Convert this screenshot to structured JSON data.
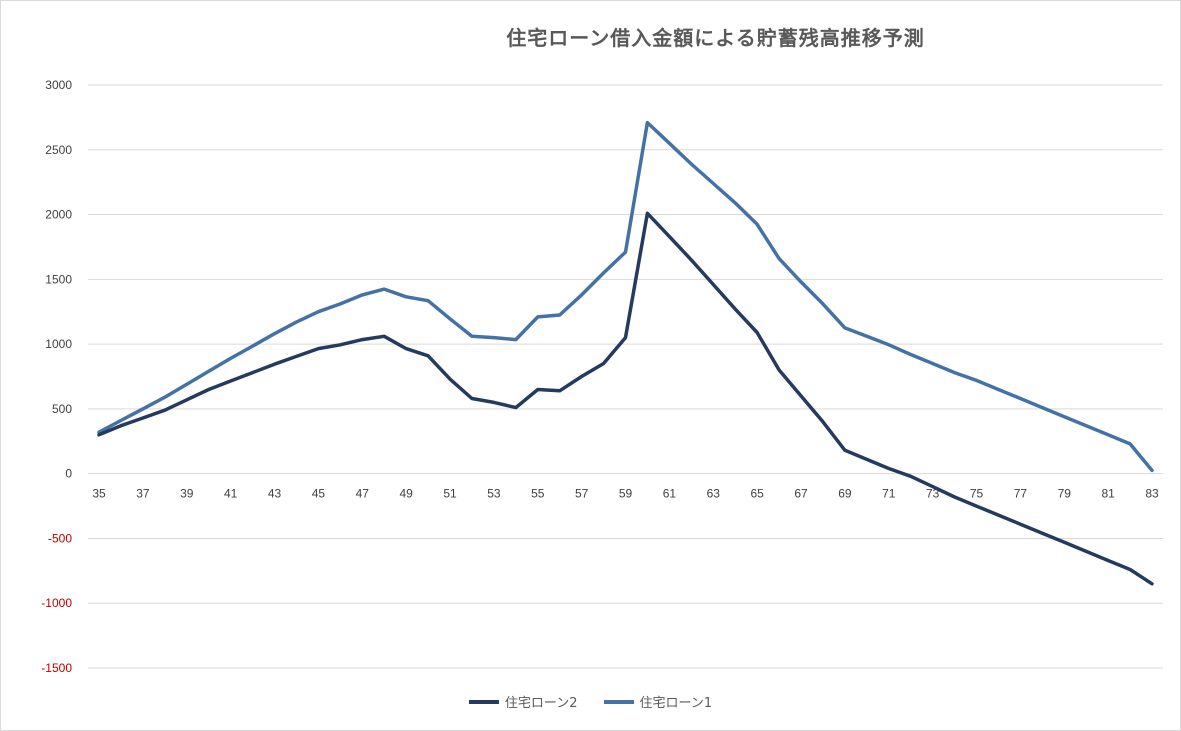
{
  "chart_data": {
    "type": "line",
    "title": "住宅ローン借入金額による貯蓄残高推移予測",
    "xlabel": "",
    "ylabel": "",
    "ylim": [
      -1500,
      3000
    ],
    "yticks": [
      3000,
      2500,
      2000,
      1500,
      1000,
      500,
      0,
      -500,
      -1000,
      -1500
    ],
    "ytick_labels": [
      "3000",
      "2500",
      "2000",
      "1500",
      "1000",
      "500",
      "0",
      "-500",
      "-1000",
      "-1500"
    ],
    "x": [
      35,
      36,
      37,
      38,
      39,
      40,
      41,
      42,
      43,
      44,
      45,
      46,
      47,
      48,
      49,
      50,
      51,
      52,
      53,
      54,
      55,
      56,
      57,
      58,
      59,
      60,
      61,
      62,
      63,
      64,
      65,
      66,
      67,
      68,
      69,
      70,
      71,
      72,
      73,
      74,
      75,
      76,
      77,
      78,
      79,
      80,
      81,
      82,
      83
    ],
    "xtick_labels": [
      "35",
      "37",
      "39",
      "41",
      "43",
      "45",
      "47",
      "49",
      "51",
      "53",
      "55",
      "57",
      "59",
      "61",
      "63",
      "65",
      "67",
      "69",
      "71",
      "73",
      "75",
      "77",
      "79",
      "81",
      "83"
    ],
    "grid": true,
    "legend_position": "bottom",
    "negative_label_color": "#c00000",
    "series": [
      {
        "name": "住宅ローン2",
        "color": "#243a5e",
        "values": [
          300,
          370,
          430,
          490,
          570,
          650,
          715,
          780,
          845,
          905,
          965,
          995,
          1035,
          1060,
          965,
          910,
          730,
          580,
          550,
          510,
          650,
          640,
          750,
          850,
          1050,
          2010,
          1830,
          1650,
          1460,
          1270,
          1090,
          800,
          600,
          400,
          180,
          110,
          40,
          -20,
          -100,
          -180,
          -250,
          -320,
          -390,
          -460,
          -530,
          -600,
          -670,
          -740,
          -850
        ]
      },
      {
        "name": "住宅ローン1",
        "color": "#4472a4",
        "values": [
          320,
          410,
          500,
          590,
          690,
          790,
          890,
          985,
          1080,
          1170,
          1250,
          1310,
          1380,
          1425,
          1365,
          1335,
          1195,
          1060,
          1050,
          1035,
          1210,
          1225,
          1380,
          1550,
          1710,
          2710,
          2550,
          2390,
          2240,
          2090,
          1925,
          1660,
          1480,
          1310,
          1125,
          1060,
          995,
          920,
          850,
          780,
          720,
          650,
          580,
          510,
          440,
          370,
          300,
          230,
          25
        ]
      }
    ]
  }
}
